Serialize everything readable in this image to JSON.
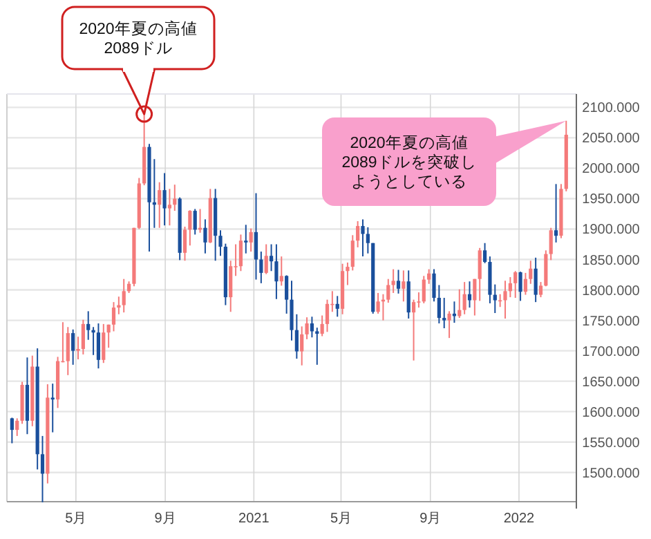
{
  "chart_data": {
    "type": "candlestick",
    "x": [
      "2020-02-03",
      "2020-02-10",
      "2020-02-17",
      "2020-02-24",
      "2020-03-02",
      "2020-03-09",
      "2020-03-16",
      "2020-03-23",
      "2020-03-30",
      "2020-04-06",
      "2020-04-13",
      "2020-04-20",
      "2020-04-27",
      "2020-05-04",
      "2020-05-11",
      "2020-05-18",
      "2020-05-25",
      "2020-06-01",
      "2020-06-08",
      "2020-06-15",
      "2020-06-22",
      "2020-06-29",
      "2020-07-06",
      "2020-07-13",
      "2020-07-20",
      "2020-07-27",
      "2020-08-03",
      "2020-08-10",
      "2020-08-17",
      "2020-08-24",
      "2020-08-31",
      "2020-09-07",
      "2020-09-14",
      "2020-09-21",
      "2020-09-28",
      "2020-10-05",
      "2020-10-12",
      "2020-10-19",
      "2020-10-26",
      "2020-11-02",
      "2020-11-09",
      "2020-11-16",
      "2020-11-23",
      "2020-11-30",
      "2020-12-07",
      "2020-12-14",
      "2020-12-21",
      "2020-12-28",
      "2021-01-04",
      "2021-01-11",
      "2021-01-18",
      "2021-01-25",
      "2021-02-01",
      "2021-02-08",
      "2021-02-15",
      "2021-02-22",
      "2021-03-01",
      "2021-03-08",
      "2021-03-15",
      "2021-03-22",
      "2021-03-29",
      "2021-04-05",
      "2021-04-12",
      "2021-04-19",
      "2021-04-26",
      "2021-05-03",
      "2021-05-10",
      "2021-05-17",
      "2021-05-24",
      "2021-05-31",
      "2021-06-07",
      "2021-06-14",
      "2021-06-21",
      "2021-06-28",
      "2021-07-05",
      "2021-07-12",
      "2021-07-19",
      "2021-07-26",
      "2021-08-02",
      "2021-08-09",
      "2021-08-16",
      "2021-08-23",
      "2021-08-30",
      "2021-09-06",
      "2021-09-13",
      "2021-09-20",
      "2021-09-27",
      "2021-10-04",
      "2021-10-11",
      "2021-10-18",
      "2021-10-25",
      "2021-11-01",
      "2021-11-08",
      "2021-11-15",
      "2021-11-22",
      "2021-11-29",
      "2021-12-06",
      "2021-12-13",
      "2021-12-20",
      "2021-12-27",
      "2022-01-03",
      "2022-01-10",
      "2022-01-17",
      "2022-01-24",
      "2022-01-31",
      "2022-02-07",
      "2022-02-14",
      "2022-02-21",
      "2022-02-28",
      "2022-03-07"
    ],
    "ohlc": [
      [
        1589,
        1590,
        1548,
        1570
      ],
      [
        1570,
        1589,
        1560,
        1585
      ],
      [
        1585,
        1649,
        1580,
        1644
      ],
      [
        1644,
        1689,
        1563,
        1585
      ],
      [
        1585,
        1692,
        1576,
        1674
      ],
      [
        1674,
        1704,
        1505,
        1530
      ],
      [
        1530,
        1560,
        1451,
        1498
      ],
      [
        1498,
        1645,
        1482,
        1623
      ],
      [
        1623,
        1646,
        1566,
        1620
      ],
      [
        1620,
        1690,
        1606,
        1683
      ],
      [
        1683,
        1747,
        1681,
        1683
      ],
      [
        1683,
        1739,
        1660,
        1729
      ],
      [
        1729,
        1735,
        1677,
        1700
      ],
      [
        1700,
        1723,
        1686,
        1703
      ],
      [
        1703,
        1751,
        1694,
        1744
      ],
      [
        1744,
        1765,
        1718,
        1734
      ],
      [
        1734,
        1739,
        1693,
        1730
      ],
      [
        1730,
        1745,
        1671,
        1685
      ],
      [
        1685,
        1744,
        1680,
        1730
      ],
      [
        1730,
        1743,
        1705,
        1743
      ],
      [
        1743,
        1780,
        1732,
        1771
      ],
      [
        1771,
        1789,
        1760,
        1775
      ],
      [
        1775,
        1818,
        1763,
        1798
      ],
      [
        1798,
        1814,
        1795,
        1810
      ],
      [
        1810,
        1902,
        1806,
        1902
      ],
      [
        1902,
        1984,
        1900,
        1975
      ],
      [
        1975,
        2089,
        1972,
        2035
      ],
      [
        2035,
        2040,
        1863,
        1944
      ],
      [
        1944,
        2015,
        1902,
        1940
      ],
      [
        1940,
        1977,
        1902,
        1964
      ],
      [
        1964,
        1992,
        1906,
        1934
      ],
      [
        1934,
        1966,
        1906,
        1940
      ],
      [
        1940,
        1973,
        1930,
        1950
      ],
      [
        1950,
        1952,
        1849,
        1861
      ],
      [
        1861,
        1904,
        1848,
        1899
      ],
      [
        1899,
        1931,
        1873,
        1930
      ],
      [
        1930,
        1933,
        1891,
        1899
      ],
      [
        1899,
        1933,
        1894,
        1902
      ],
      [
        1902,
        1916,
        1860,
        1878
      ],
      [
        1878,
        1966,
        1877,
        1951
      ],
      [
        1951,
        1966,
        1848,
        1889
      ],
      [
        1889,
        1898,
        1856,
        1871
      ],
      [
        1871,
        1876,
        1775,
        1788
      ],
      [
        1788,
        1848,
        1764,
        1839
      ],
      [
        1839,
        1875,
        1823,
        1839
      ],
      [
        1839,
        1891,
        1831,
        1881
      ],
      [
        1881,
        1907,
        1860,
        1878
      ],
      [
        1878,
        1901,
        1863,
        1895
      ],
      [
        1895,
        1959,
        1817,
        1850
      ],
      [
        1850,
        1863,
        1811,
        1828
      ],
      [
        1828,
        1875,
        1826,
        1856
      ],
      [
        1856,
        1875,
        1831,
        1847
      ],
      [
        1847,
        1875,
        1785,
        1814
      ],
      [
        1814,
        1855,
        1807,
        1823
      ],
      [
        1823,
        1824,
        1761,
        1784
      ],
      [
        1784,
        1815,
        1717,
        1734
      ],
      [
        1734,
        1760,
        1687,
        1699
      ],
      [
        1699,
        1740,
        1676,
        1727
      ],
      [
        1727,
        1755,
        1719,
        1745
      ],
      [
        1745,
        1756,
        1722,
        1732
      ],
      [
        1732,
        1738,
        1677,
        1728
      ],
      [
        1728,
        1758,
        1724,
        1744
      ],
      [
        1744,
        1784,
        1731,
        1777
      ],
      [
        1777,
        1798,
        1764,
        1777
      ],
      [
        1777,
        1790,
        1756,
        1769
      ],
      [
        1769,
        1843,
        1760,
        1831
      ],
      [
        1831,
        1845,
        1808,
        1838
      ],
      [
        1838,
        1890,
        1832,
        1881
      ],
      [
        1881,
        1913,
        1870,
        1905
      ],
      [
        1905,
        1916,
        1855,
        1892
      ],
      [
        1892,
        1903,
        1860,
        1877
      ],
      [
        1877,
        1877,
        1761,
        1764
      ],
      [
        1764,
        1795,
        1761,
        1781
      ],
      [
        1781,
        1793,
        1750,
        1784
      ],
      [
        1784,
        1818,
        1779,
        1808
      ],
      [
        1808,
        1834,
        1795,
        1815
      ],
      [
        1815,
        1833,
        1794,
        1802
      ],
      [
        1802,
        1832,
        1781,
        1814
      ],
      [
        1814,
        1832,
        1753,
        1763
      ],
      [
        1763,
        1784,
        1684,
        1780
      ],
      [
        1780,
        1796,
        1771,
        1781
      ],
      [
        1781,
        1823,
        1778,
        1817
      ],
      [
        1817,
        1834,
        1810,
        1827
      ],
      [
        1827,
        1834,
        1781,
        1787
      ],
      [
        1787,
        1808,
        1745,
        1754
      ],
      [
        1754,
        1787,
        1737,
        1750
      ],
      [
        1750,
        1765,
        1721,
        1761
      ],
      [
        1761,
        1781,
        1746,
        1757
      ],
      [
        1757,
        1801,
        1754,
        1767
      ],
      [
        1767,
        1813,
        1760,
        1793
      ],
      [
        1793,
        1814,
        1771,
        1783
      ],
      [
        1783,
        1818,
        1758,
        1818
      ],
      [
        1818,
        1869,
        1782,
        1865
      ],
      [
        1865,
        1877,
        1844,
        1846
      ],
      [
        1846,
        1855,
        1778,
        1792
      ],
      [
        1792,
        1809,
        1762,
        1783
      ],
      [
        1783,
        1793,
        1772,
        1783
      ],
      [
        1783,
        1815,
        1753,
        1798
      ],
      [
        1798,
        1821,
        1788,
        1811
      ],
      [
        1811,
        1831,
        1787,
        1829
      ],
      [
        1829,
        1830,
        1782,
        1797
      ],
      [
        1797,
        1828,
        1792,
        1818
      ],
      [
        1818,
        1848,
        1810,
        1835
      ],
      [
        1835,
        1853,
        1780,
        1792
      ],
      [
        1792,
        1813,
        1788,
        1807
      ],
      [
        1807,
        1865,
        1806,
        1859
      ],
      [
        1859,
        1902,
        1849,
        1898
      ],
      [
        1898,
        1974,
        1878,
        1889
      ],
      [
        1889,
        1974,
        1885,
        1966
      ],
      [
        1966,
        2078,
        1962,
        2055
      ]
    ],
    "colors": [
      "#1a4f9c",
      "#f47a7a",
      "#f47a7a",
      "#1a4f9c",
      "#f47a7a",
      "#1a4f9c",
      "#1a4f9c",
      "#f47a7a",
      "#1a4f9c",
      "#f47a7a",
      "#f47a7a",
      "#f47a7a",
      "#1a4f9c",
      "#f47a7a",
      "#f47a7a",
      "#1a4f9c",
      "#1a4f9c",
      "#1a4f9c",
      "#f47a7a",
      "#f47a7a",
      "#f47a7a",
      "#f47a7a",
      "#f47a7a",
      "#f47a7a",
      "#f47a7a",
      "#f47a7a",
      "#f47a7a",
      "#1a4f9c",
      "#1a4f9c",
      "#f47a7a",
      "#1a4f9c",
      "#f47a7a",
      "#f47a7a",
      "#1a4f9c",
      "#f47a7a",
      "#f47a7a",
      "#1a4f9c",
      "#f47a7a",
      "#1a4f9c",
      "#f47a7a",
      "#1a4f9c",
      "#1a4f9c",
      "#1a4f9c",
      "#f47a7a",
      "#f47a7a",
      "#f47a7a",
      "#1a4f9c",
      "#f47a7a",
      "#1a4f9c",
      "#1a4f9c",
      "#f47a7a",
      "#1a4f9c",
      "#1a4f9c",
      "#f47a7a",
      "#1a4f9c",
      "#1a4f9c",
      "#1a4f9c",
      "#f47a7a",
      "#f47a7a",
      "#1a4f9c",
      "#1a4f9c",
      "#f47a7a",
      "#f47a7a",
      "#f47a7a",
      "#1a4f9c",
      "#f47a7a",
      "#f47a7a",
      "#f47a7a",
      "#f47a7a",
      "#1a4f9c",
      "#1a4f9c",
      "#1a4f9c",
      "#f47a7a",
      "#f47a7a",
      "#f47a7a",
      "#f47a7a",
      "#1a4f9c",
      "#f47a7a",
      "#1a4f9c",
      "#f47a7a",
      "#f47a7a",
      "#f47a7a",
      "#f47a7a",
      "#1a4f9c",
      "#1a4f9c",
      "#1a4f9c",
      "#f47a7a",
      "#1a4f9c",
      "#f47a7a",
      "#f47a7a",
      "#1a4f9c",
      "#f47a7a",
      "#f47a7a",
      "#1a4f9c",
      "#1a4f9c",
      "#1a4f9c",
      "#f47a7a",
      "#f47a7a",
      "#f47a7a",
      "#f47a7a",
      "#1a4f9c",
      "#f47a7a",
      "#f47a7a",
      "#1a4f9c",
      "#f47a7a",
      "#f47a7a",
      "#f47a7a",
      "#1a4f9c",
      "#f47a7a",
      "#f47a7a"
    ],
    "xlim": [
      "2020-01-27",
      "2022-03-21"
    ],
    "xticks": [
      {
        "value": "2020-05-01",
        "label": "5月"
      },
      {
        "value": "2020-09-01",
        "label": "9月"
      },
      {
        "value": "2021-01-01",
        "label": "2021"
      },
      {
        "value": "2021-05-01",
        "label": "5月"
      },
      {
        "value": "2021-09-01",
        "label": "9月"
      },
      {
        "value": "2022-01-01",
        "label": "2022"
      }
    ],
    "ylim": [
      1452,
      2122
    ],
    "yticks": [
      {
        "value": 1500,
        "label": "1500.000"
      },
      {
        "value": 1550,
        "label": "1550.000"
      },
      {
        "value": 1600,
        "label": "1600.000"
      },
      {
        "value": 1650,
        "label": "1650.000"
      },
      {
        "value": 1700,
        "label": "1700.000"
      },
      {
        "value": 1750,
        "label": "1750.000"
      },
      {
        "value": 1800,
        "label": "1800.000"
      },
      {
        "value": 1850,
        "label": "1850.000"
      },
      {
        "value": 1900,
        "label": "1900.000"
      },
      {
        "value": 1950,
        "label": "1950.000"
      },
      {
        "value": 2000,
        "label": "2000.000"
      },
      {
        "value": 2050,
        "label": "2050.000"
      },
      {
        "value": 2100,
        "label": "2100.000"
      }
    ],
    "grid": true,
    "annotations": [
      "2020年夏の高値2089ドル",
      "2020年夏の高値2089ドルを突破しようとしている"
    ]
  }
}
